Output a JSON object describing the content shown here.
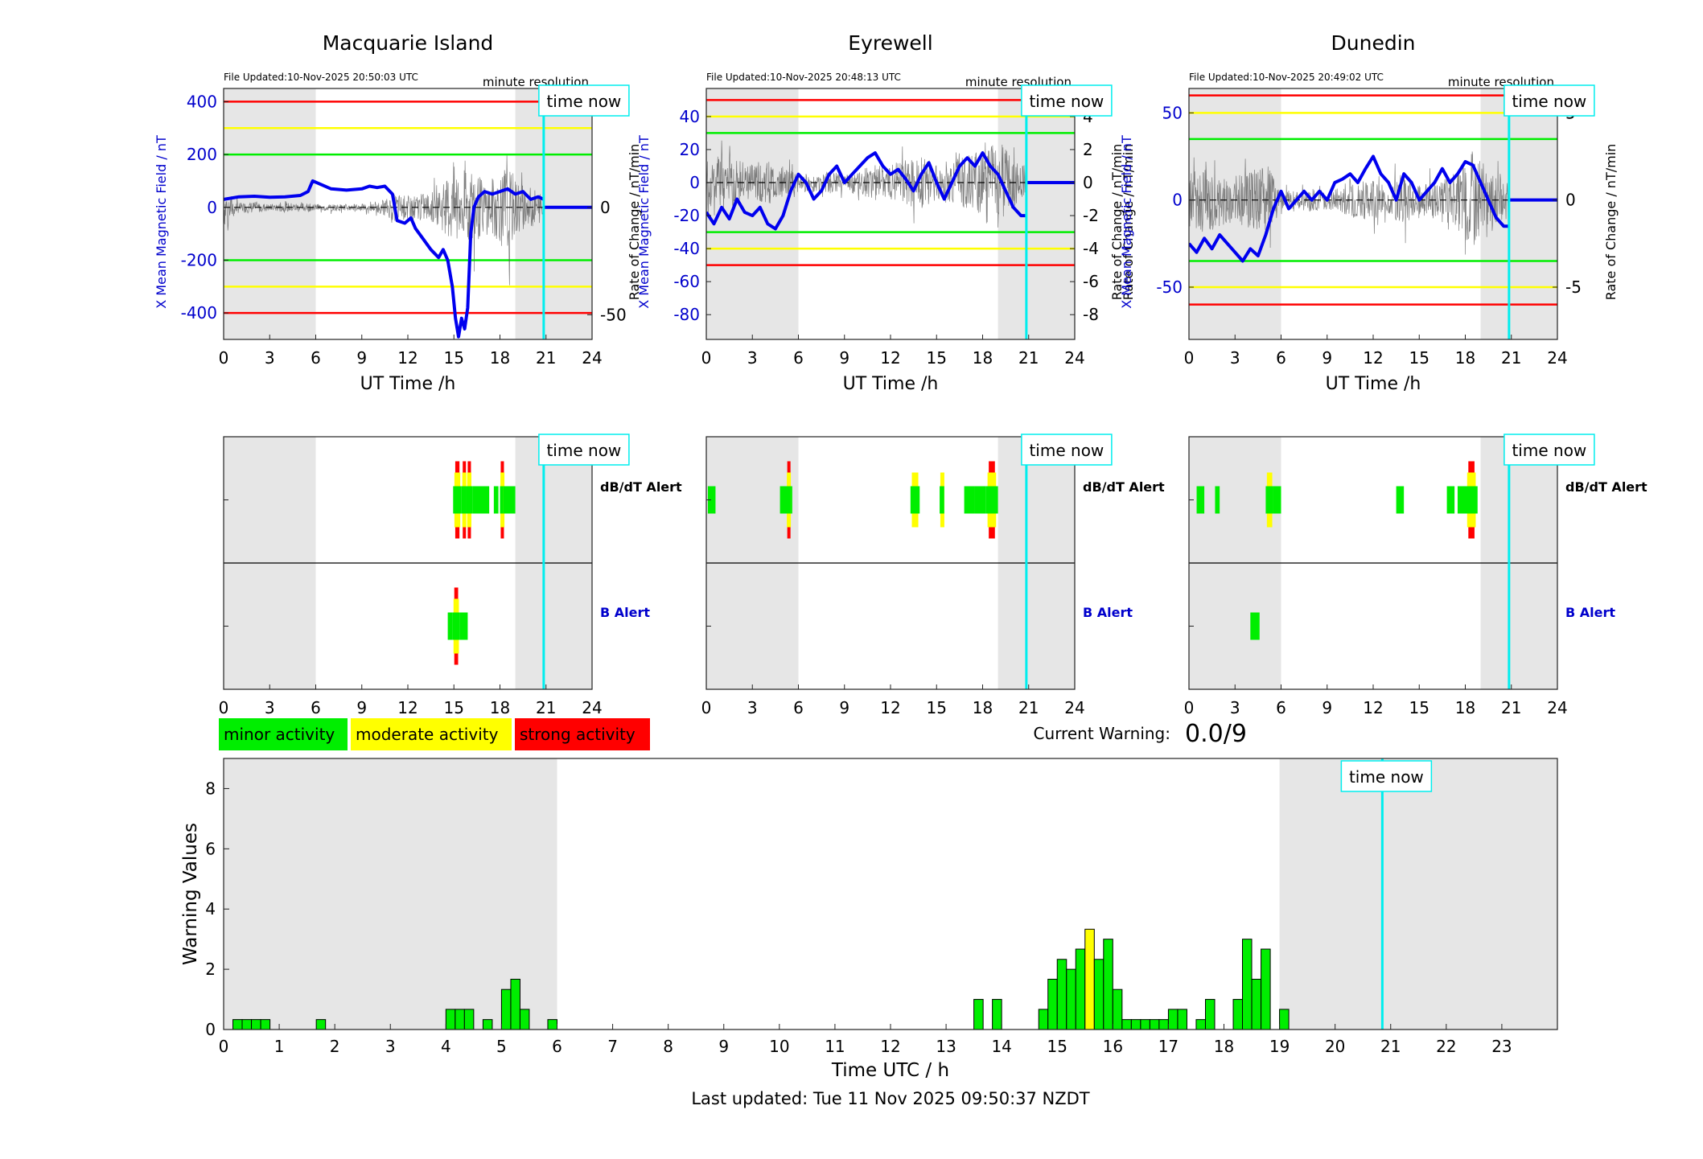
{
  "stations": [
    {
      "name": "Macquarie Island",
      "file_updated": "File Updated:10-Nov-2025 20:50:03 UTC",
      "resolution": "minute resolution",
      "y_left_label": "X Mean Magnetic Field / nT",
      "y_right_label": "",
      "ylim_left": [
        -500,
        450
      ],
      "ylim_right": [
        -61.5,
        55.5
      ],
      "left_ticks": [
        400,
        200,
        0,
        -200,
        -400
      ],
      "right_ticks": [
        50,
        0,
        -50
      ],
      "thresholds": {
        "green": 200,
        "yellow": 300,
        "red": 400
      },
      "x_ticks": [
        0,
        3,
        6,
        9,
        12,
        15,
        18,
        21,
        24
      ],
      "xlabel": "UT Time /h",
      "night_shading": [
        [
          0,
          6
        ],
        [
          19,
          24
        ]
      ],
      "time_now": 20.85,
      "field_trace": [
        [
          0,
          30
        ],
        [
          1,
          40
        ],
        [
          2,
          42
        ],
        [
          3,
          38
        ],
        [
          4,
          40
        ],
        [
          5,
          45
        ],
        [
          5.5,
          60
        ],
        [
          5.8,
          100
        ],
        [
          6.2,
          90
        ],
        [
          7,
          70
        ],
        [
          8,
          65
        ],
        [
          9,
          70
        ],
        [
          9.5,
          80
        ],
        [
          10,
          75
        ],
        [
          10.5,
          80
        ],
        [
          11,
          50
        ],
        [
          11.3,
          -50
        ],
        [
          11.8,
          -60
        ],
        [
          12.2,
          -40
        ],
        [
          12.5,
          -80
        ],
        [
          13,
          -120
        ],
        [
          13.5,
          -160
        ],
        [
          14,
          -190
        ],
        [
          14.3,
          -160
        ],
        [
          14.6,
          -200
        ],
        [
          14.9,
          -300
        ],
        [
          15.1,
          -420
        ],
        [
          15.3,
          -490
        ],
        [
          15.5,
          -420
        ],
        [
          15.7,
          -460
        ],
        [
          15.9,
          -380
        ],
        [
          16.1,
          -100
        ],
        [
          16.3,
          0
        ],
        [
          16.6,
          40
        ],
        [
          17,
          60
        ],
        [
          17.5,
          50
        ],
        [
          18,
          60
        ],
        [
          18.5,
          70
        ],
        [
          19,
          50
        ],
        [
          19.5,
          60
        ],
        [
          20,
          30
        ],
        [
          20.5,
          40
        ],
        [
          20.85,
          30
        ]
      ],
      "rate_envelope": [
        [
          0,
          18
        ],
        [
          1,
          4
        ],
        [
          2,
          5
        ],
        [
          3,
          3
        ],
        [
          4,
          4
        ],
        [
          5,
          4
        ],
        [
          6,
          3
        ],
        [
          7,
          3
        ],
        [
          8,
          3
        ],
        [
          9,
          3
        ],
        [
          10,
          4
        ],
        [
          10.8,
          9
        ],
        [
          11.2,
          12
        ],
        [
          12,
          10
        ],
        [
          13,
          12
        ],
        [
          14,
          15
        ],
        [
          15,
          35
        ],
        [
          15.5,
          45
        ],
        [
          16,
          35
        ],
        [
          16.5,
          30
        ],
        [
          17,
          22
        ],
        [
          18,
          30
        ],
        [
          18.5,
          40
        ],
        [
          19,
          25
        ],
        [
          19.5,
          20
        ],
        [
          20,
          18
        ],
        [
          20.8,
          12
        ]
      ],
      "alerts": {
        "dbdt": [
          [
            14.95,
            15.5,
            "green",
            3
          ],
          [
            15.5,
            15.8,
            "green",
            3
          ],
          [
            15.8,
            16.2,
            "green",
            3
          ],
          [
            16.2,
            17.3,
            "green",
            1
          ],
          [
            17.6,
            17.9,
            "green",
            1
          ],
          [
            18,
            18.2,
            "green",
            3
          ],
          [
            18.2,
            19,
            "green",
            1
          ]
        ],
        "b": [
          [
            14.6,
            14.9,
            "green",
            1
          ],
          [
            14.9,
            15.4,
            "green",
            3
          ],
          [
            15.4,
            15.9,
            "green",
            1
          ]
        ]
      },
      "alert_labels": {
        "dbdt": "dB/dT Alert",
        "b": "B Alert"
      }
    },
    {
      "name": "Eyrewell",
      "file_updated": "File Updated:10-Nov-2025 20:48:13 UTC",
      "resolution": "minute resolution",
      "y_left_label": "X Mean Magnetic Field / nT",
      "y_right_label": "Rate of Change / nT/min",
      "ylim_left": [
        -95,
        57
      ],
      "ylim_right": [
        -9.5,
        5.7
      ],
      "left_ticks": [
        40,
        20,
        0,
        -20,
        -40,
        -60,
        -80
      ],
      "right_ticks": [
        4,
        2,
        0,
        -2,
        -4,
        -6,
        -8
      ],
      "thresholds": {
        "green": 30,
        "yellow": 40,
        "red": 50
      },
      "x_ticks": [
        0,
        3,
        6,
        9,
        12,
        15,
        18,
        21,
        24
      ],
      "xlabel": "UT Time /h",
      "night_shading": [
        [
          0,
          6
        ],
        [
          19,
          24
        ]
      ],
      "time_now": 20.85,
      "field_trace": [
        [
          0,
          -18
        ],
        [
          0.5,
          -25
        ],
        [
          1,
          -15
        ],
        [
          1.5,
          -22
        ],
        [
          2,
          -10
        ],
        [
          2.5,
          -18
        ],
        [
          3,
          -20
        ],
        [
          3.5,
          -15
        ],
        [
          4,
          -25
        ],
        [
          4.5,
          -28
        ],
        [
          5,
          -20
        ],
        [
          5.5,
          -5
        ],
        [
          6,
          5
        ],
        [
          6.5,
          0
        ],
        [
          7,
          -10
        ],
        [
          7.5,
          -5
        ],
        [
          8,
          5
        ],
        [
          8.5,
          10
        ],
        [
          9,
          0
        ],
        [
          9.5,
          5
        ],
        [
          10,
          10
        ],
        [
          10.5,
          15
        ],
        [
          11,
          18
        ],
        [
          11.5,
          10
        ],
        [
          12,
          5
        ],
        [
          12.5,
          8
        ],
        [
          13,
          2
        ],
        [
          13.5,
          -5
        ],
        [
          14,
          5
        ],
        [
          14.5,
          12
        ],
        [
          15,
          0
        ],
        [
          15.5,
          -10
        ],
        [
          16,
          0
        ],
        [
          16.5,
          10
        ],
        [
          17,
          15
        ],
        [
          17.5,
          10
        ],
        [
          18,
          18
        ],
        [
          18.5,
          10
        ],
        [
          19,
          5
        ],
        [
          19.5,
          -5
        ],
        [
          20,
          -15
        ],
        [
          20.5,
          -20
        ],
        [
          20.85,
          -20
        ]
      ],
      "rate_envelope": [
        [
          0,
          2.5
        ],
        [
          1,
          3
        ],
        [
          2,
          2.5
        ],
        [
          3,
          2
        ],
        [
          4,
          2.5
        ],
        [
          5,
          2
        ],
        [
          6,
          1
        ],
        [
          7,
          1
        ],
        [
          8,
          1.2
        ],
        [
          9,
          1
        ],
        [
          10,
          1.5
        ],
        [
          11,
          2
        ],
        [
          12,
          2
        ],
        [
          13,
          2.5
        ],
        [
          14,
          3
        ],
        [
          15,
          2
        ],
        [
          16,
          2.5
        ],
        [
          17,
          3
        ],
        [
          18,
          4
        ],
        [
          18.8,
          6
        ],
        [
          19.5,
          4
        ],
        [
          20.5,
          2
        ]
      ],
      "alerts": {
        "dbdt": [
          [
            0.1,
            0.6,
            "green",
            1
          ],
          [
            4.8,
            5.6,
            "green",
            1
          ],
          [
            5.2,
            5.5,
            "green",
            3
          ],
          [
            13.3,
            13.9,
            "green",
            2
          ],
          [
            15.2,
            15.5,
            "green",
            2
          ],
          [
            16.8,
            17.5,
            "green",
            1
          ],
          [
            17.5,
            18.2,
            "green",
            1
          ],
          [
            18.2,
            19,
            "green",
            3
          ]
        ],
        "b": []
      },
      "alert_labels": {
        "dbdt": "dB/dT Alert",
        "b": "B Alert"
      }
    },
    {
      "name": "Dunedin",
      "file_updated": "File Updated:10-Nov-2025 20:49:02 UTC",
      "resolution": "minute resolution",
      "y_left_label": "X Mean Magnetic Field / nT",
      "y_right_label": "Rate of Change / nT/min",
      "ylim_left": [
        -80,
        64
      ],
      "ylim_right": [
        -8,
        6.4
      ],
      "left_ticks": [
        50,
        0,
        -50
      ],
      "right_ticks": [
        5,
        0,
        -5
      ],
      "thresholds": {
        "green": 35,
        "yellow": 50,
        "red": 60
      },
      "x_ticks": [
        0,
        3,
        6,
        9,
        12,
        15,
        18,
        21,
        24
      ],
      "xlabel": "UT Time /h",
      "night_shading": [
        [
          0,
          6
        ],
        [
          19,
          24
        ]
      ],
      "time_now": 20.85,
      "field_trace": [
        [
          0,
          -25
        ],
        [
          0.5,
          -30
        ],
        [
          1,
          -22
        ],
        [
          1.5,
          -28
        ],
        [
          2,
          -20
        ],
        [
          2.5,
          -25
        ],
        [
          3,
          -30
        ],
        [
          3.5,
          -35
        ],
        [
          4,
          -28
        ],
        [
          4.5,
          -32
        ],
        [
          5,
          -20
        ],
        [
          5.5,
          -5
        ],
        [
          6,
          5
        ],
        [
          6.5,
          -5
        ],
        [
          7,
          0
        ],
        [
          7.5,
          5
        ],
        [
          8,
          0
        ],
        [
          8.5,
          5
        ],
        [
          9,
          0
        ],
        [
          9.5,
          10
        ],
        [
          10,
          12
        ],
        [
          10.5,
          15
        ],
        [
          11,
          10
        ],
        [
          11.5,
          18
        ],
        [
          12,
          25
        ],
        [
          12.5,
          15
        ],
        [
          13,
          10
        ],
        [
          13.5,
          0
        ],
        [
          14,
          15
        ],
        [
          14.5,
          10
        ],
        [
          15,
          0
        ],
        [
          15.5,
          5
        ],
        [
          16,
          10
        ],
        [
          16.5,
          18
        ],
        [
          17,
          10
        ],
        [
          17.5,
          15
        ],
        [
          18,
          22
        ],
        [
          18.5,
          20
        ],
        [
          19,
          10
        ],
        [
          19.5,
          0
        ],
        [
          20,
          -10
        ],
        [
          20.5,
          -15
        ],
        [
          20.85,
          -15
        ]
      ],
      "rate_envelope": [
        [
          0,
          3
        ],
        [
          1,
          3.5
        ],
        [
          2,
          3
        ],
        [
          3,
          2.5
        ],
        [
          4,
          3
        ],
        [
          5,
          4
        ],
        [
          6,
          1
        ],
        [
          7,
          1
        ],
        [
          8,
          1.2
        ],
        [
          9,
          1
        ],
        [
          10,
          1.5
        ],
        [
          11,
          2
        ],
        [
          12,
          2
        ],
        [
          13,
          1.5
        ],
        [
          14,
          3
        ],
        [
          15,
          1.5
        ],
        [
          16,
          2
        ],
        [
          17,
          2.5
        ],
        [
          17.5,
          3
        ],
        [
          18,
          4.5
        ],
        [
          18.5,
          5.5
        ],
        [
          19.5,
          3
        ],
        [
          20.5,
          2
        ]
      ],
      "alerts": {
        "dbdt": [
          [
            0.5,
            1,
            "green",
            1
          ],
          [
            1.7,
            2,
            "green",
            1
          ],
          [
            5,
            5.5,
            "green",
            2
          ],
          [
            5.5,
            6,
            "green",
            1
          ],
          [
            13.5,
            14,
            "green",
            1
          ],
          [
            16.8,
            17.3,
            "green",
            1
          ],
          [
            17.5,
            18,
            "green",
            1
          ],
          [
            18,
            18.8,
            "green",
            3
          ]
        ],
        "b": [
          [
            4,
            4.6,
            "green",
            1
          ]
        ]
      },
      "alert_labels": {
        "dbdt": "dB/dT Alert",
        "b": "B Alert"
      }
    }
  ],
  "time_now_label": "time now",
  "legend": [
    {
      "label": "minor activity",
      "color": "#00ee00"
    },
    {
      "label": "moderate activity",
      "color": "#ffff00"
    },
    {
      "label": "strong activity",
      "color": "#ff0000"
    }
  ],
  "current_warning": {
    "label": "Current Warning:",
    "value": "0.0/9"
  },
  "chart_data": {
    "type": "bar",
    "ylabel": "Warning Values",
    "xlabel": "Time UTC / h",
    "ylim": [
      0,
      9
    ],
    "xlim": [
      0,
      24
    ],
    "y_ticks": [
      0,
      2,
      4,
      6,
      8
    ],
    "x_ticks": [
      0,
      1,
      2,
      3,
      4,
      5,
      6,
      7,
      8,
      9,
      10,
      11,
      12,
      13,
      14,
      15,
      16,
      17,
      18,
      19,
      20,
      21,
      22,
      23
    ],
    "night_shading": [
      [
        0,
        6
      ],
      [
        19,
        24
      ]
    ],
    "time_now": 20.85,
    "bars": [
      [
        0.167,
        0.33,
        "g"
      ],
      [
        0.333,
        0.33,
        "g"
      ],
      [
        0.5,
        0.33,
        "g"
      ],
      [
        0.667,
        0.33,
        "g"
      ],
      [
        1.667,
        0.33,
        "g"
      ],
      [
        4,
        0.67,
        "g"
      ],
      [
        4.167,
        0.67,
        "g"
      ],
      [
        4.333,
        0.67,
        "g"
      ],
      [
        4.667,
        0.33,
        "g"
      ],
      [
        5,
        1.33,
        "g"
      ],
      [
        5.167,
        1.67,
        "g"
      ],
      [
        5.333,
        0.67,
        "g"
      ],
      [
        5.833,
        0.33,
        "g"
      ],
      [
        13.5,
        1,
        "g"
      ],
      [
        13.833,
        1,
        "g"
      ],
      [
        14.667,
        0.67,
        "g"
      ],
      [
        14.833,
        1.67,
        "g"
      ],
      [
        15,
        2.33,
        "g"
      ],
      [
        15.167,
        2,
        "g"
      ],
      [
        15.333,
        2.67,
        "g"
      ],
      [
        15.5,
        3.33,
        "y"
      ],
      [
        15.667,
        2.33,
        "g"
      ],
      [
        15.833,
        3,
        "g"
      ],
      [
        16,
        1.33,
        "g"
      ],
      [
        16.167,
        0.33,
        "g"
      ],
      [
        16.333,
        0.33,
        "g"
      ],
      [
        16.5,
        0.33,
        "g"
      ],
      [
        16.667,
        0.33,
        "g"
      ],
      [
        16.833,
        0.33,
        "g"
      ],
      [
        17,
        0.67,
        "g"
      ],
      [
        17.167,
        0.67,
        "g"
      ],
      [
        17.5,
        0.33,
        "g"
      ],
      [
        17.667,
        1,
        "g"
      ],
      [
        18.167,
        1,
        "g"
      ],
      [
        18.333,
        3,
        "g"
      ],
      [
        18.5,
        1.67,
        "g"
      ],
      [
        18.667,
        2.67,
        "g"
      ],
      [
        19,
        0.67,
        "g"
      ]
    ]
  },
  "footer": "Last updated: Tue 11 Nov 2025 09:50:37 NZDT",
  "colors": {
    "field": "#0000ee",
    "rate": "#555555",
    "red": "#ff0000",
    "yellow": "#ffff00",
    "green": "#00ee00",
    "cyan": "#00eeee",
    "shade": "#e6e6e6",
    "axis_blue": "#0000cc"
  }
}
